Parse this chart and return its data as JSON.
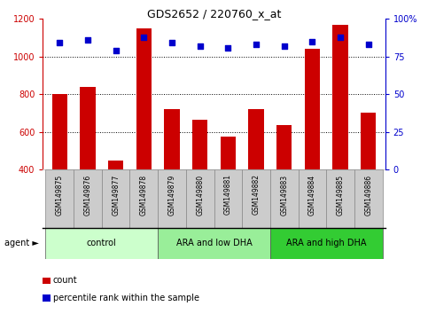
{
  "title": "GDS2652 / 220760_x_at",
  "samples": [
    "GSM149875",
    "GSM149876",
    "GSM149877",
    "GSM149878",
    "GSM149879",
    "GSM149880",
    "GSM149881",
    "GSM149882",
    "GSM149883",
    "GSM149884",
    "GSM149885",
    "GSM149886"
  ],
  "counts": [
    800,
    840,
    450,
    1150,
    720,
    665,
    575,
    720,
    635,
    1040,
    1170,
    700
  ],
  "percentiles": [
    84,
    86,
    79,
    88,
    84,
    82,
    81,
    83,
    82,
    85,
    88,
    83
  ],
  "bar_color": "#cc0000",
  "dot_color": "#0000cc",
  "ylim_left": [
    400,
    1200
  ],
  "ylim_right": [
    0,
    100
  ],
  "yticks_left": [
    400,
    600,
    800,
    1000,
    1200
  ],
  "yticks_right": [
    0,
    25,
    50,
    75,
    100
  ],
  "groups": [
    {
      "label": "control",
      "start": 0,
      "end": 4,
      "color": "#ccffcc"
    },
    {
      "label": "ARA and low DHA",
      "start": 4,
      "end": 8,
      "color": "#99ee99"
    },
    {
      "label": "ARA and high DHA",
      "start": 8,
      "end": 12,
      "color": "#33cc33"
    }
  ],
  "agent_label": "agent",
  "legend_count": "count",
  "legend_percentile": "percentile rank within the sample",
  "tick_label_color_left": "#cc0000",
  "tick_label_color_right": "#0000cc",
  "grid_color": "#000000",
  "xtick_bg": "#cccccc",
  "xtick_border": "#888888"
}
